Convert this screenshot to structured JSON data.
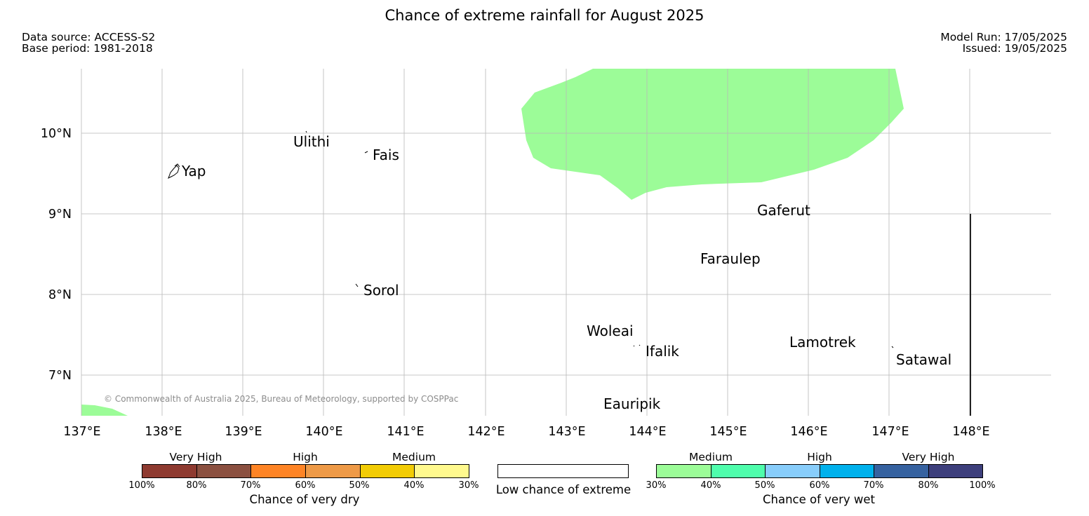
{
  "title": "Chance of extreme rainfall for August 2025",
  "header_left": {
    "data_source": "Data source: ACCESS-S2",
    "base_period": "Base period: 1981-2018"
  },
  "header_right": {
    "model_run": "Model Run: 17/05/2025",
    "issued": "Issued: 19/05/2025"
  },
  "map": {
    "lat_labels": [
      "10°N",
      "9°N",
      "8°N",
      "7°N"
    ],
    "lon_labels": [
      "137°E",
      "138°E",
      "139°E",
      "140°E",
      "141°E",
      "142°E",
      "143°E",
      "144°E",
      "145°E",
      "146°E",
      "147°E",
      "148°E"
    ],
    "places": {
      "ulithi": "Ulithi",
      "fais": "Fais",
      "yap": "Yap",
      "gaferut": "Gaferut",
      "faraulep": "Faraulep",
      "sorol": "Sorol",
      "woleai": "Woleai",
      "ifalik": "Ifalik",
      "lamotrek": "Lamotrek",
      "satawal": "Satawal",
      "eauripik": "Eauripik"
    },
    "copyright": "© Commonwealth of Australia 2025, Bureau of Meteorology, supported by COSPPac",
    "medium_wet_color": "#9cfc98"
  },
  "legend": {
    "dry": {
      "categories": [
        "Very High",
        "High",
        "Medium"
      ],
      "ticks": [
        "100%",
        "80%",
        "70%",
        "60%",
        "50%",
        "40%",
        "30%"
      ],
      "colors": [
        "#8e3a30",
        "#8b5040",
        "#fe8425",
        "#ee9a47",
        "#f2cc05",
        "#fff98e"
      ],
      "title": "Chance of very dry"
    },
    "low": {
      "title": "Low chance of extreme",
      "color": "#ffffff"
    },
    "wet": {
      "categories": [
        "Medium",
        "High",
        "Very High"
      ],
      "ticks": [
        "30%",
        "40%",
        "50%",
        "60%",
        "70%",
        "80%",
        "100%"
      ],
      "colors": [
        "#9cfc98",
        "#4ffdac",
        "#88cdfb",
        "#00b1ec",
        "#3662a0",
        "#3d3f7c"
      ],
      "title": "Chance of very wet"
    }
  }
}
